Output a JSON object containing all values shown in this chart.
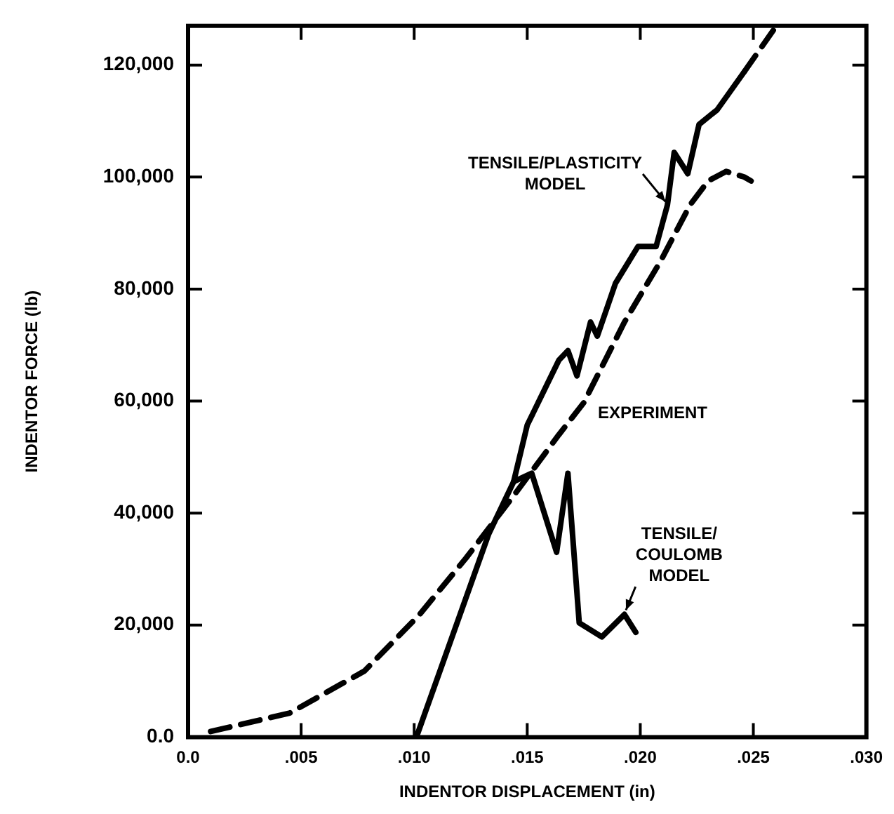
{
  "chart_data": {
    "type": "line",
    "xlabel": "INDENTOR DISPLACEMENT (in)",
    "ylabel": "INDENTOR FORCE (lb)",
    "xlim": [
      0,
      0.03
    ],
    "ylim": [
      0,
      127000
    ],
    "xticks": [
      {
        "value": 0,
        "label": "0.0"
      },
      {
        "value": 0.005,
        "label": ".005"
      },
      {
        "value": 0.01,
        "label": ".010"
      },
      {
        "value": 0.015,
        "label": ".015"
      },
      {
        "value": 0.02,
        "label": ".020"
      },
      {
        "value": 0.025,
        "label": ".025"
      },
      {
        "value": 0.03,
        "label": ".030"
      }
    ],
    "yticks": [
      {
        "value": 0,
        "label": "0.0"
      },
      {
        "value": 20000,
        "label": "20,000"
      },
      {
        "value": 40000,
        "label": "40,000"
      },
      {
        "value": 60000,
        "label": "60,000"
      },
      {
        "value": 80000,
        "label": "80,000"
      },
      {
        "value": 100000,
        "label": "100,000"
      },
      {
        "value": 120000,
        "label": "120,000"
      }
    ],
    "grid": false,
    "legend": false,
    "marker": "none",
    "series": [
      {
        "name": "TENSILE/PLASTICITY MODEL",
        "color": "#000000",
        "line_style": "solid",
        "x": [
          0.0101,
          0.0133,
          0.0144,
          0.015,
          0.0164,
          0.0168,
          0.0172,
          0.0178,
          0.0181,
          0.0189,
          0.0199,
          0.0207,
          0.0212,
          0.0215,
          0.0221,
          0.0226,
          0.0234,
          0.0246
        ],
        "values": [
          0,
          36300,
          45600,
          55700,
          67300,
          69000,
          64500,
          74100,
          71600,
          81000,
          87600,
          87600,
          95000,
          104400,
          100600,
          109400,
          112000,
          118800
        ]
      },
      {
        "color": "#000000",
        "line_style": "dashed",
        "x": [
          0.0246,
          0.0259
        ],
        "values": [
          118800,
          126300
        ]
      },
      {
        "name": "EXPERIMENT",
        "color": "#000000",
        "line_style": "dashed",
        "x": [
          0.001,
          0.0045,
          0.0078,
          0.0102,
          0.0123,
          0.0144,
          0.0164,
          0.0175,
          0.0193,
          0.0209,
          0.0222,
          0.023,
          0.0238,
          0.0246,
          0.0249
        ],
        "values": [
          1000,
          4300,
          11800,
          21700,
          32000,
          43100,
          54000,
          59700,
          74100,
          85000,
          95000,
          99300,
          101000,
          100000,
          99300
        ]
      },
      {
        "name": "TENSILE/COULOMB MODEL",
        "color": "#000000",
        "line_style": "solid",
        "x": [
          0.0144,
          0.0152,
          0.0163,
          0.0168,
          0.0173,
          0.0183,
          0.0193,
          0.0198
        ],
        "values": [
          45600,
          47100,
          33000,
          47100,
          20400,
          17900,
          21900,
          18700
        ]
      }
    ]
  }
}
